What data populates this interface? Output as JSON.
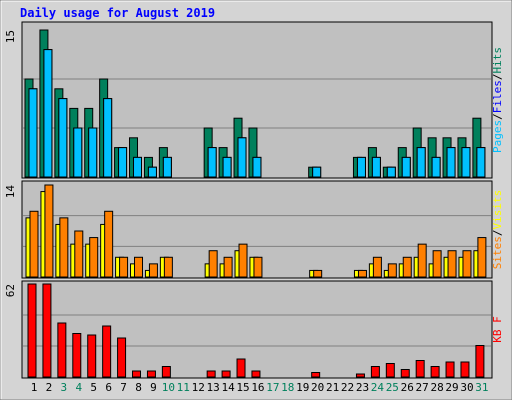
{
  "chart_data": [
    {
      "type": "bar",
      "title": "Daily usage for August 2019",
      "ylim": [
        0,
        15
      ],
      "yticks": [
        15
      ],
      "legend_separator": "/",
      "series": [
        {
          "name": "Hits",
          "color": "#00805c",
          "values": [
            10,
            15,
            9,
            7,
            7,
            10,
            3,
            4,
            2,
            3,
            0,
            0,
            5,
            3,
            6,
            5,
            0,
            0,
            0,
            1,
            0,
            0,
            2,
            3,
            1,
            3,
            5,
            4,
            4,
            4,
            6
          ]
        },
        {
          "name": "Files",
          "color": "#0000ff",
          "values": [
            9,
            13,
            8,
            5,
            5,
            8,
            3,
            2,
            1,
            2,
            0,
            0,
            3,
            2,
            4,
            2,
            0,
            0,
            0,
            1,
            0,
            0,
            2,
            2,
            1,
            2,
            3,
            2,
            3,
            3,
            3
          ]
        },
        {
          "name": "Pages",
          "color": "#00c0ff",
          "values": [
            9,
            13,
            8,
            5,
            5,
            8,
            3,
            2,
            1,
            2,
            0,
            0,
            3,
            2,
            4,
            2,
            0,
            0,
            0,
            1,
            0,
            0,
            2,
            2,
            1,
            2,
            3,
            2,
            3,
            3,
            3
          ]
        }
      ]
    },
    {
      "type": "bar",
      "ylim": [
        0,
        14
      ],
      "yticks": [
        14
      ],
      "legend_separator": "/",
      "series": [
        {
          "name": "Visits",
          "color": "#ffff00",
          "values": [
            9,
            13,
            8,
            5,
            5,
            8,
            3,
            2,
            1,
            3,
            0,
            0,
            2,
            2,
            4,
            3,
            0,
            0,
            0,
            1,
            0,
            0,
            1,
            2,
            1,
            2,
            3,
            2,
            3,
            3,
            4
          ]
        },
        {
          "name": "Sites",
          "color": "#ff8000",
          "values": [
            10,
            14,
            9,
            7,
            6,
            10,
            3,
            3,
            2,
            3,
            0,
            0,
            4,
            3,
            5,
            3,
            0,
            0,
            0,
            1,
            0,
            0,
            1,
            3,
            2,
            3,
            5,
            4,
            4,
            4,
            6
          ]
        }
      ]
    },
    {
      "type": "bar",
      "ylim": [
        0,
        62
      ],
      "yticks": [
        62
      ],
      "categories": [
        "1",
        "2",
        "3",
        "4",
        "5",
        "6",
        "7",
        "8",
        "9",
        "10",
        "11",
        "12",
        "13",
        "14",
        "15",
        "16",
        "17",
        "18",
        "19",
        "20",
        "21",
        "22",
        "23",
        "24",
        "25",
        "26",
        "27",
        "28",
        "29",
        "30",
        "31"
      ],
      "category_colors": [
        "#000000",
        "#000000",
        "#00805c",
        "#00805c",
        "#000000",
        "#000000",
        "#000000",
        "#000000",
        "#000000",
        "#00805c",
        "#00805c",
        "#000000",
        "#000000",
        "#000000",
        "#000000",
        "#000000",
        "#00805c",
        "#00805c",
        "#000000",
        "#000000",
        "#000000",
        "#000000",
        "#000000",
        "#00805c",
        "#00805c",
        "#000000",
        "#000000",
        "#000000",
        "#000000",
        "#000000",
        "#00805c"
      ],
      "series": [
        {
          "name": "KB F",
          "color": "#ff0000",
          "values": [
            62,
            62,
            36,
            29,
            28,
            34,
            26,
            4,
            4,
            7,
            0,
            0,
            4,
            4,
            12,
            4,
            0,
            0,
            0,
            3,
            0,
            0,
            2,
            7,
            9,
            5,
            11,
            7,
            10,
            10,
            21
          ]
        }
      ]
    }
  ]
}
